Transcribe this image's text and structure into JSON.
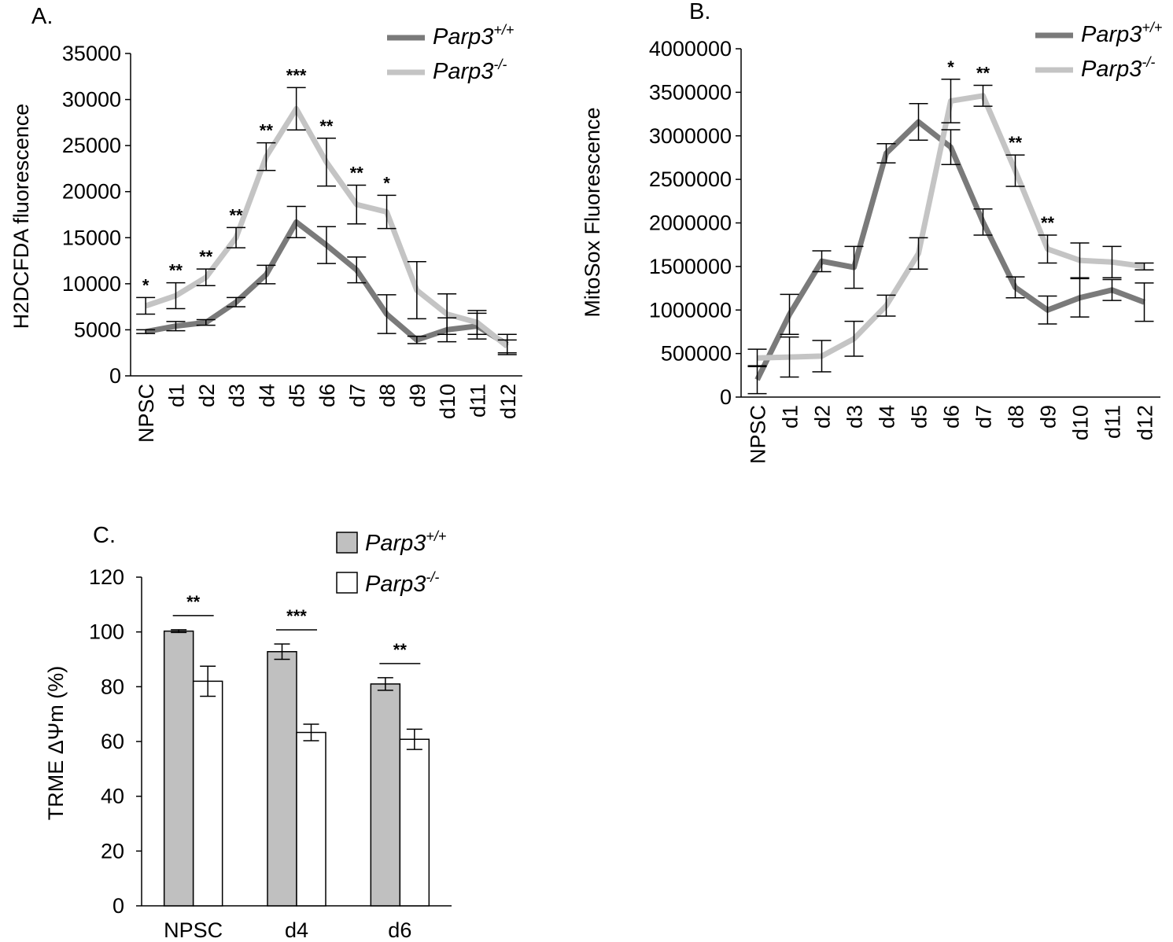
{
  "colors": {
    "wt_line": "#7a7a7a",
    "ko_line": "#c4c4c4",
    "wt_bar": "#c0c0c0",
    "ko_bar": "#ffffff",
    "axis": "#000000"
  },
  "chart_data": [
    {
      "id": "A",
      "panel_label": "A.",
      "type": "line",
      "title": "",
      "ylabel": "H2DCFDA fluorescence",
      "xlabel": "",
      "ylim": [
        0,
        35000
      ],
      "yticks": [
        0,
        5000,
        10000,
        15000,
        20000,
        25000,
        30000,
        35000
      ],
      "ytick_labels": [
        "0",
        "5000",
        "10000",
        "15000",
        "20000",
        "25000",
        "30000",
        "35000"
      ],
      "categories": [
        "NPSC",
        "d1",
        "d2",
        "d3",
        "d4",
        "d5",
        "d6",
        "d7",
        "d8",
        "d9",
        "d10",
        "d11",
        "d12"
      ],
      "series": [
        {
          "name": "Parp3",
          "superscript": "+/+",
          "color_key": "wt_line",
          "values": [
            4800,
            5400,
            5800,
            8000,
            11000,
            16700,
            14200,
            11500,
            6700,
            3900,
            5000,
            5400,
            3400
          ],
          "errors": [
            200,
            500,
            300,
            500,
            1000,
            1700,
            2000,
            1400,
            2100,
            400,
            1300,
            1400,
            1100
          ]
        },
        {
          "name": "Parp3",
          "superscript": "-/-",
          "color_key": "ko_line",
          "values": [
            7600,
            8700,
            10700,
            15000,
            23800,
            29000,
            23200,
            18600,
            17800,
            9300,
            6700,
            5800,
            3200
          ],
          "errors": [
            900,
            1400,
            900,
            1100,
            1500,
            2300,
            2600,
            2100,
            1800,
            3100,
            2200,
            1300,
            700
          ]
        }
      ],
      "significance": [
        "*",
        "**",
        "**",
        "**",
        "**",
        "***",
        "**",
        "**",
        "*",
        "",
        "",
        "",
        ""
      ],
      "legend": [
        {
          "label": "Parp3",
          "superscript": "+/+"
        },
        {
          "label": "Parp3",
          "superscript": "-/-"
        }
      ],
      "legend_position": "top-right"
    },
    {
      "id": "B",
      "panel_label": "B.",
      "type": "line",
      "title": "",
      "ylabel": "MitoSox Fluorescence",
      "xlabel": "",
      "ylim": [
        0,
        4000000
      ],
      "yticks": [
        0,
        500000,
        1000000,
        1500000,
        2000000,
        2500000,
        3000000,
        3500000,
        4000000
      ],
      "ytick_labels": [
        "0",
        "500000",
        "1000000",
        "1500000",
        "2000000",
        "2500000",
        "3000000",
        "3500000",
        "4000000"
      ],
      "categories": [
        "NPSC",
        "d1",
        "d2",
        "d3",
        "d4",
        "d5",
        "d6",
        "d7",
        "d8",
        "d9",
        "d10",
        "d11",
        "d12"
      ],
      "series": [
        {
          "name": "Parp3",
          "superscript": "+/+",
          "color_key": "wt_line",
          "values": [
            200000,
            950000,
            1560000,
            1490000,
            2800000,
            3160000,
            2870000,
            2010000,
            1260000,
            1000000,
            1140000,
            1230000,
            1090000
          ],
          "errors": [
            160000,
            230000,
            120000,
            240000,
            110000,
            210000,
            200000,
            150000,
            120000,
            160000,
            220000,
            120000,
            220000
          ]
        },
        {
          "name": "Parp3",
          "superscript": "-/-",
          "color_key": "ko_line",
          "values": [
            450000,
            460000,
            470000,
            670000,
            1050000,
            1650000,
            3400000,
            3460000,
            2600000,
            1700000,
            1570000,
            1550000,
            1500000
          ],
          "errors": [
            100000,
            230000,
            180000,
            200000,
            120000,
            180000,
            250000,
            120000,
            180000,
            160000,
            200000,
            180000,
            40000
          ]
        }
      ],
      "significance": [
        "",
        "",
        "",
        "",
        "",
        "",
        "*",
        "**",
        "**",
        "**",
        "",
        "",
        ""
      ],
      "legend": [
        {
          "label": "Parp3",
          "superscript": "+/+"
        },
        {
          "label": "Parp3",
          "superscript": "-/-"
        }
      ],
      "legend_position": "top-right"
    },
    {
      "id": "C",
      "panel_label": "C.",
      "type": "bar",
      "title": "",
      "ylabel": "TRME ΔΨm  (%)",
      "xlabel": "",
      "ylim": [
        0,
        120
      ],
      "yticks": [
        0,
        20,
        40,
        60,
        80,
        100,
        120
      ],
      "ytick_labels": [
        "0",
        "20",
        "40",
        "60",
        "80",
        "100",
        "120"
      ],
      "categories": [
        "NPSC",
        "d4",
        "d6"
      ],
      "series": [
        {
          "name": "Parp3",
          "superscript": "+/+",
          "color_key": "wt_bar",
          "values": [
            100.3,
            92.8,
            81.0
          ],
          "errors": [
            0.5,
            2.8,
            2.3
          ]
        },
        {
          "name": "Parp3",
          "superscript": "-/-",
          "color_key": "ko_bar",
          "values": [
            82.0,
            63.3,
            60.8
          ],
          "errors": [
            5.5,
            3.0,
            3.7
          ]
        }
      ],
      "significance": [
        "**",
        "***",
        "**"
      ],
      "legend": [
        {
          "label": "Parp3",
          "superscript": "+/+"
        },
        {
          "label": "Parp3",
          "superscript": "-/-"
        }
      ],
      "legend_position": "top-right"
    }
  ]
}
